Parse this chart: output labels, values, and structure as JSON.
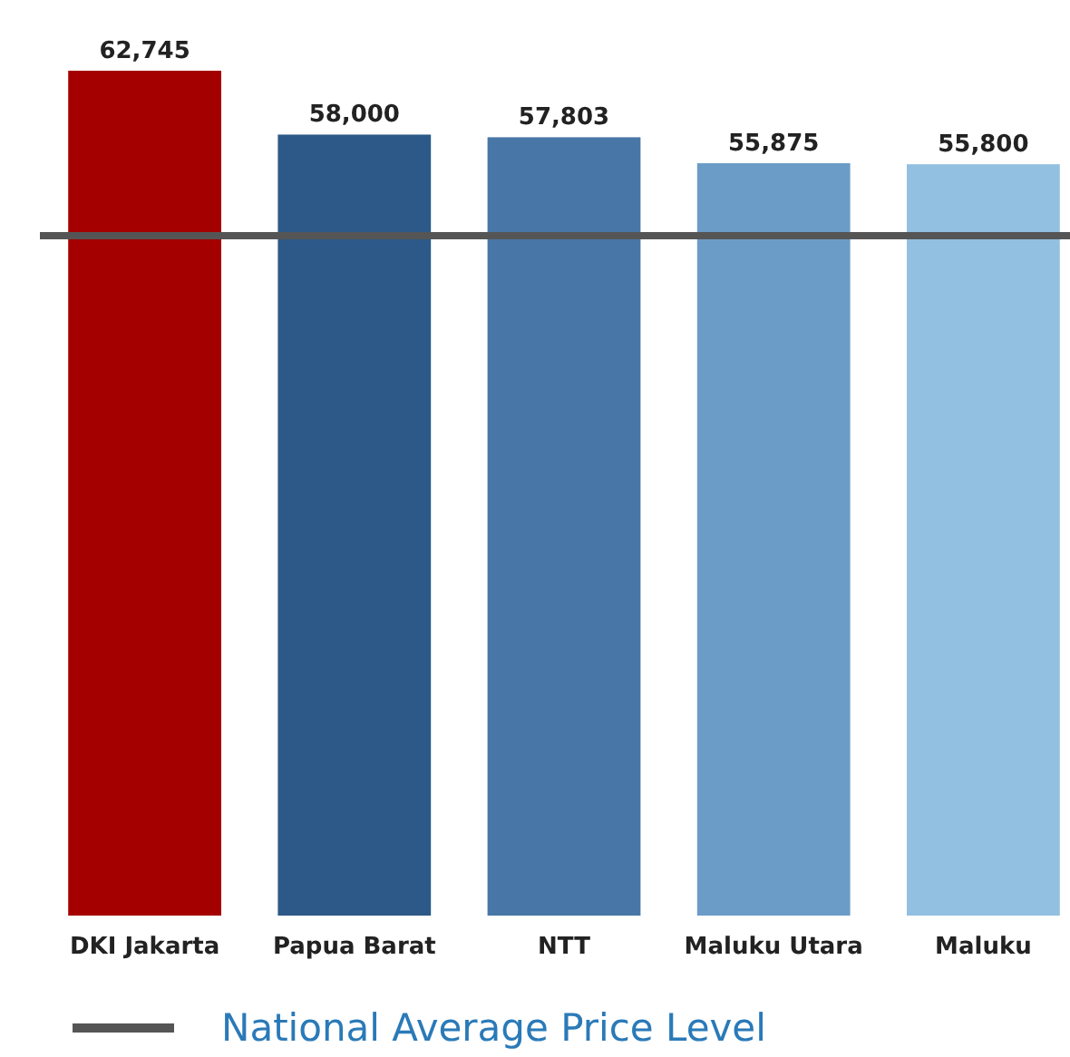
{
  "chart_data": {
    "type": "bar",
    "categories": [
      "DKI Jakarta",
      "Papua Barat",
      "NTT",
      "Maluku Utara",
      "Maluku"
    ],
    "values": [
      62745,
      58000,
      57803,
      55875,
      55800
    ],
    "colors": [
      "#a50000",
      "#2c5987",
      "#4876a6",
      "#6b9cc7",
      "#92c0e0"
    ],
    "value_labels": [
      "62,745",
      "58,000",
      "57,803",
      "55,875",
      "55,800"
    ],
    "tick_labels": "x",
    "ref_lines": [
      {
        "axis": "y",
        "value": 50500,
        "label": "National Average Price Level",
        "color": "#555555"
      }
    ],
    "legend": "bottom"
  }
}
